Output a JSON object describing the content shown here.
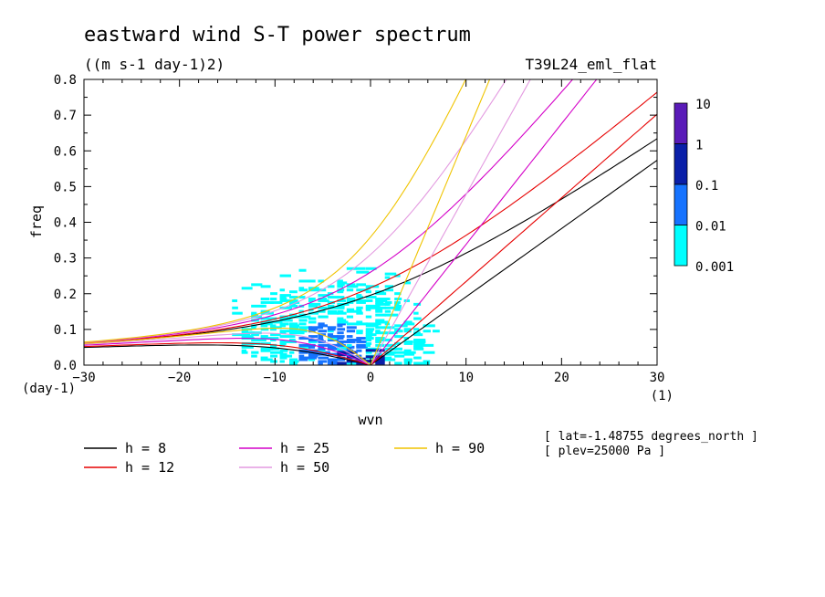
{
  "chart_data": {
    "type": "heatmap",
    "title": "eastward wind S-T power spectrum",
    "subtitle": "((m s-1 day-1)2)",
    "run_label": "T39L24_eml_flat",
    "xlabel": "wvn",
    "ylabel": "freq",
    "x_unit": "(1)",
    "y_unit": "(day-1)",
    "xlim": [
      -30,
      30
    ],
    "ylim": [
      0,
      0.8
    ],
    "x_ticks": [
      -30,
      -20,
      -10,
      0,
      10,
      20,
      30
    ],
    "x_tick_labels": [
      "−30",
      "−20",
      "−10",
      "0",
      "10",
      "20",
      "30"
    ],
    "y_ticks": [
      0,
      0.1,
      0.2,
      0.3,
      0.4,
      0.5,
      0.6,
      0.7,
      0.8
    ],
    "y_tick_labels": [
      "0.0",
      "0.1",
      "0.2",
      "0.3",
      "0.4",
      "0.5",
      "0.6",
      "0.7",
      "0.8"
    ],
    "notes": [
      "[ lat=-1.48755 degrees_north ]",
      "[ plev=25000 Pa ]"
    ],
    "colorbar": {
      "labels": [
        "10",
        "1",
        "0.1",
        "0.01",
        "0.001"
      ],
      "colors": [
        "#5a1bb8",
        "#0a1fa8",
        "#1673ff",
        "#00ffff"
      ]
    },
    "dispersion_legend_labels": [
      "h =  8",
      "h = 12",
      "h = 25",
      "h = 50",
      "h = 90"
    ],
    "dispersion_curves": [
      {
        "h": 8,
        "color": "#000000"
      },
      {
        "h": 12,
        "color": "#e60000"
      },
      {
        "h": 25,
        "color": "#d400c8"
      },
      {
        "h": 50,
        "color": "#e39ae0"
      },
      {
        "h": 90,
        "color": "#f0c400"
      }
    ],
    "power_regions": [
      {
        "level": "0.001-0.01",
        "color": "#00ffff",
        "x_range": [
          -13,
          6
        ],
        "y_range": [
          0.0,
          0.27
        ]
      },
      {
        "level": "0.01-0.1",
        "color": "#1673ff",
        "x_range": [
          -8,
          2
        ],
        "y_range": [
          0.0,
          0.18
        ]
      },
      {
        "level": "0.1-1",
        "color": "#0a1fa8",
        "x_range": [
          -2,
          1
        ],
        "y_range": [
          0.0,
          0.02
        ]
      }
    ]
  }
}
